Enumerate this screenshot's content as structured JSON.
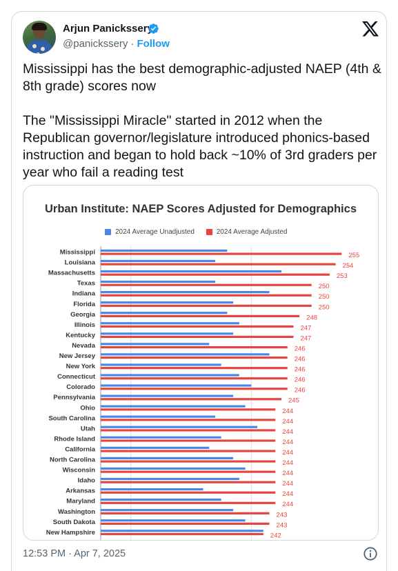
{
  "tweet": {
    "author_name": "Arjun Panickssery",
    "handle": "@panickssery",
    "separator": "·",
    "follow_label": "Follow",
    "text": "Mississippi has the best demographic-adjusted NAEP (4th & 8th grade) scores now\n\nThe \"Mississippi Miracle\" started in 2012 when the Republican governor/legislature introduced phonics-based instruction and began to hold back ~10% of 3rd graders per year who fail a reading test",
    "timestamp": "12:53 PM · Apr 7, 2025"
  },
  "icons": {
    "verified": "verified-badge-icon",
    "platform": "x-logo-icon",
    "info": "info-icon"
  },
  "colors": {
    "unadjusted": "#4a86e8",
    "adjusted": "#e6453f",
    "link": "#1d9bf0",
    "verified": "#1d9bf0"
  },
  "chart_data": {
    "type": "bar",
    "orientation": "horizontal",
    "title": "Urban Institute: NAEP Scores Adjusted for Demographics",
    "legend_position": "top",
    "grid": true,
    "series": [
      {
        "name": "2024 Average Unadjusted",
        "values": [
          236,
          234,
          245,
          234,
          243,
          237,
          236,
          238,
          237,
          233,
          243,
          235,
          238,
          240,
          237,
          239,
          234,
          241,
          235,
          233,
          237,
          239,
          238,
          232,
          235,
          237,
          239,
          242
        ]
      },
      {
        "name": "2024 Average Adjusted",
        "values": [
          255,
          254,
          253,
          250,
          250,
          250,
          248,
          247,
          247,
          246,
          246,
          246,
          246,
          246,
          245,
          244,
          244,
          244,
          244,
          244,
          244,
          244,
          244,
          244,
          244,
          243,
          243,
          242
        ]
      }
    ],
    "categories": [
      "Mississippi",
      "Louisiana",
      "Massachusetts",
      "Texas",
      "Indiana",
      "Florida",
      "Georgia",
      "Illinois",
      "Kentucky",
      "Nevada",
      "New Jersey",
      "New York",
      "Connecticut",
      "Colorado",
      "Pennsylvania",
      "Ohio",
      "South Carolina",
      "Utah",
      "Rhode Island",
      "California",
      "North Carolina",
      "Wisconsin",
      "Idaho",
      "Arkansas",
      "Maryland",
      "Washington",
      "South Dakota",
      "New Hampshire"
    ],
    "data_labels": [
      "255",
      "254",
      "253",
      "250",
      "250",
      "250",
      "248",
      "247",
      "247",
      "246",
      "246",
      "246",
      "246",
      "246",
      "245",
      "244",
      "244",
      "244",
      "244",
      "244",
      "244",
      "244",
      "244",
      "244",
      "244",
      "243",
      "243",
      "242"
    ],
    "xlim": [
      215,
      260
    ]
  }
}
